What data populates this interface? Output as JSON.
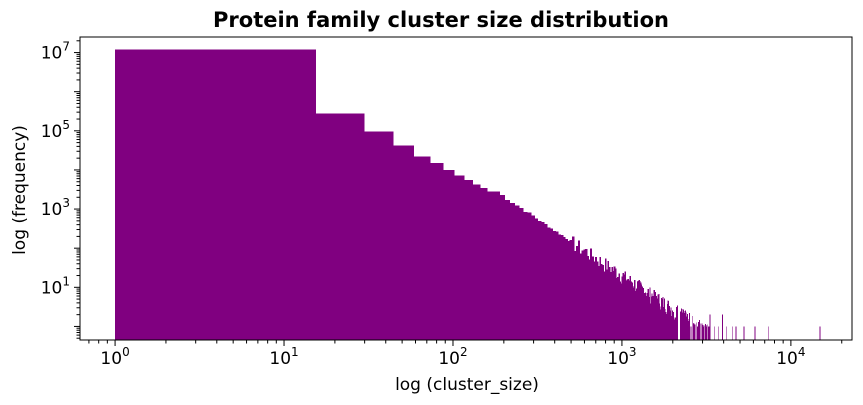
{
  "chart_data": {
    "type": "bar",
    "subtype": "histogram",
    "title": "Protein family cluster size distribution",
    "xlabel": "log (cluster_size)",
    "ylabel": "log (frequency)",
    "x_scale": "log",
    "y_scale": "log",
    "xlim": [
      0.62,
      23000
    ],
    "ylim": [
      0.45,
      25000000
    ],
    "grid": false,
    "bar_color": "#800080",
    "x_ticks": [
      {
        "value": 1,
        "base": "10",
        "exp": "0"
      },
      {
        "value": 10,
        "base": "10",
        "exp": "1"
      },
      {
        "value": 100,
        "base": "10",
        "exp": "2"
      },
      {
        "value": 1000,
        "base": "10",
        "exp": "3"
      },
      {
        "value": 10000,
        "base": "10",
        "exp": "4"
      }
    ],
    "y_ticks": [
      {
        "value": 10,
        "base": "10",
        "exp": "1"
      },
      {
        "value": 1000,
        "base": "10",
        "exp": "3"
      },
      {
        "value": 100000,
        "base": "10",
        "exp": "5"
      },
      {
        "value": 10000000,
        "base": "10",
        "exp": "7"
      }
    ],
    "bin_width": 14.4,
    "bins": [
      {
        "x0": 1,
        "x1": 15.4,
        "count": 12000000
      },
      {
        "x0": 15.4,
        "x1": 29.8,
        "count": 280000
      },
      {
        "x0": 29.8,
        "x1": 44.2,
        "count": 95000
      },
      {
        "x0": 44.2,
        "x1": 58.6,
        "count": 42000
      },
      {
        "x0": 58.6,
        "x1": 73.0,
        "count": 22000
      },
      {
        "x0": 73.0,
        "x1": 87.4,
        "count": 15000
      },
      {
        "x0": 87.4,
        "x1": 101.8,
        "count": 10000
      },
      {
        "x0": 101.8,
        "x1": 116.2,
        "count": 7200
      },
      {
        "x0": 116.2,
        "x1": 130.6,
        "count": 5600
      },
      {
        "x0": 130.6,
        "x1": 145.0,
        "count": 4300
      },
      {
        "x0": 145.0,
        "x1": 159.4,
        "count": 3500
      },
      {
        "x0": 159.4,
        "x1": 173.8,
        "count": 2800
      }
    ],
    "tail_model": {
      "x_start": 173.8,
      "x_end": 3300,
      "y_start": 2800,
      "y_end": 0.7,
      "seed": 7
    },
    "sparse_tail": [
      {
        "x": 3150,
        "count": 1
      },
      {
        "x": 3300,
        "count": 2
      },
      {
        "x": 3520,
        "count": 1
      },
      {
        "x": 3700,
        "count": 1
      },
      {
        "x": 3920,
        "count": 2
      },
      {
        "x": 4150,
        "count": 1
      },
      {
        "x": 4500,
        "count": 1
      },
      {
        "x": 4700,
        "count": 1
      },
      {
        "x": 5250,
        "count": 1
      },
      {
        "x": 6100,
        "count": 1
      },
      {
        "x": 7300,
        "count": 1
      },
      {
        "x": 14800,
        "count": 1
      }
    ]
  }
}
